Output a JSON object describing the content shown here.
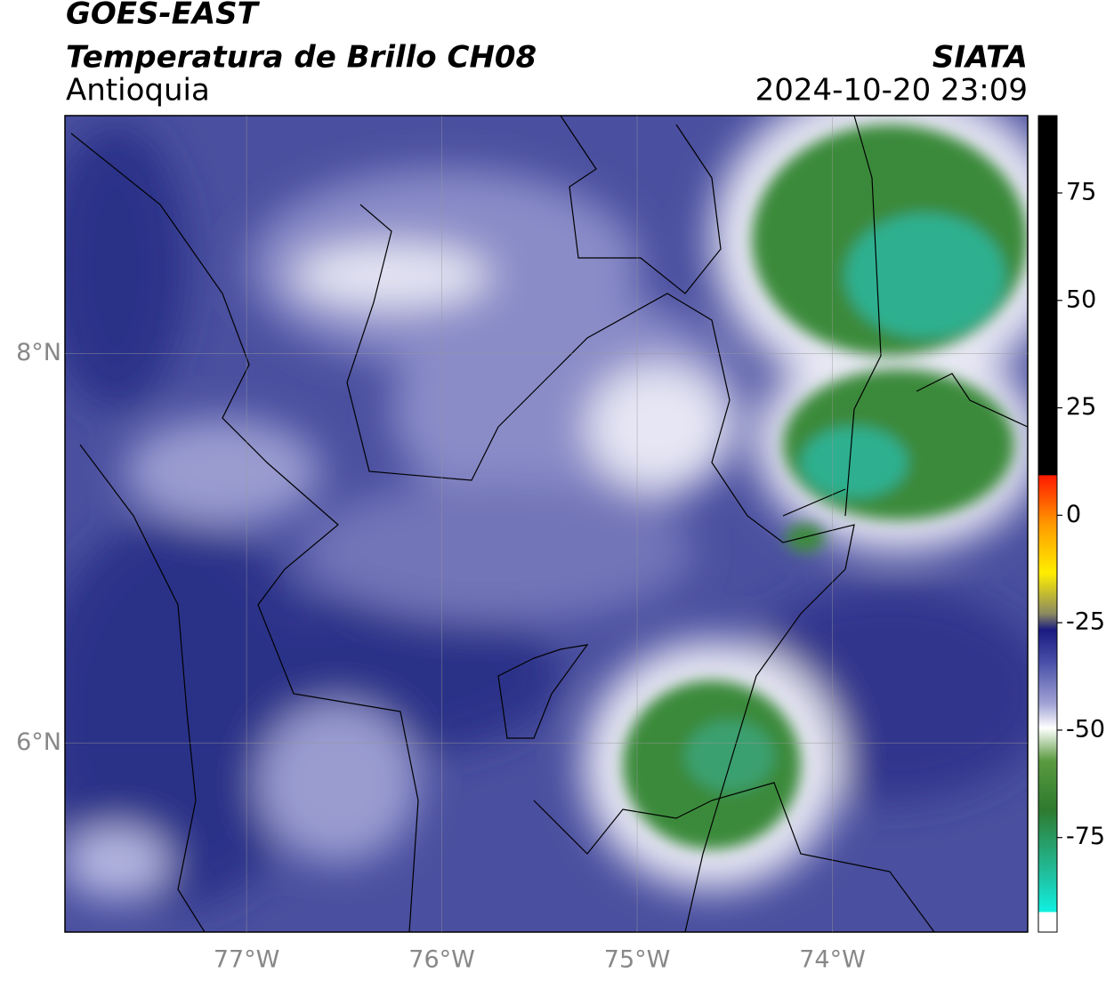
{
  "header": {
    "title": "GOES-EAST",
    "subtitle": "Temperatura de Brillo CH08",
    "region": "Antioquia",
    "source": "SIATA",
    "datetime": "2024-10-20 23:09"
  },
  "map": {
    "xlim": [
      -77.93,
      -73.0
    ],
    "ylim": [
      5.03,
      9.22
    ],
    "xticks": [
      {
        "value": -77,
        "label": "77°W"
      },
      {
        "value": -76,
        "label": "76°W"
      },
      {
        "value": -75,
        "label": "75°W"
      },
      {
        "value": -74,
        "label": "74°W"
      }
    ],
    "yticks": [
      {
        "value": 8,
        "label": "8°N"
      },
      {
        "value": 6,
        "label": "6°N"
      }
    ]
  },
  "colorbar": {
    "lim": [
      -97,
      93
    ],
    "ticks": [
      75,
      50,
      25,
      0,
      -25,
      -50,
      -75
    ]
  }
}
